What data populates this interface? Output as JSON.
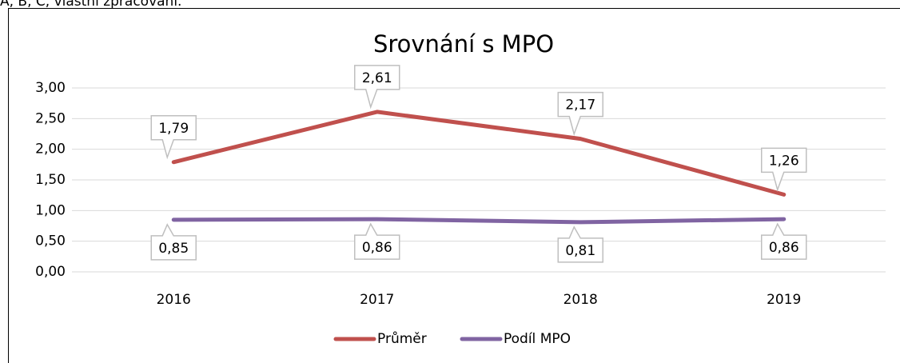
{
  "source": "A, B, C, vlastní zpracování.",
  "chart_data": {
    "type": "line",
    "title": "Srovnání s MPO",
    "categories": [
      "2016",
      "2017",
      "2018",
      "2019"
    ],
    "series": [
      {
        "name": "Průměr",
        "color": "#c0504d",
        "values": [
          1.79,
          2.61,
          2.17,
          1.26
        ],
        "value_labels": [
          "1,79",
          "2,61",
          "2,17",
          "1,26"
        ]
      },
      {
        "name": "Podíl MPO",
        "color": "#8064a2",
        "values": [
          0.85,
          0.86,
          0.81,
          0.86
        ],
        "value_labels": [
          "0,85",
          "0,86",
          "0,81",
          "0,86"
        ]
      }
    ],
    "ylim": [
      0,
      3
    ],
    "yticks": [
      {
        "value": 0,
        "label": "0,00"
      },
      {
        "value": 0.5,
        "label": "0,50"
      },
      {
        "value": 1,
        "label": "1,00"
      },
      {
        "value": 1.5,
        "label": "1,50"
      },
      {
        "value": 2,
        "label": "2,00"
      },
      {
        "value": 2.5,
        "label": "2,50"
      },
      {
        "value": 3,
        "label": "3,00"
      }
    ],
    "grid": true,
    "legend": "bottom"
  }
}
